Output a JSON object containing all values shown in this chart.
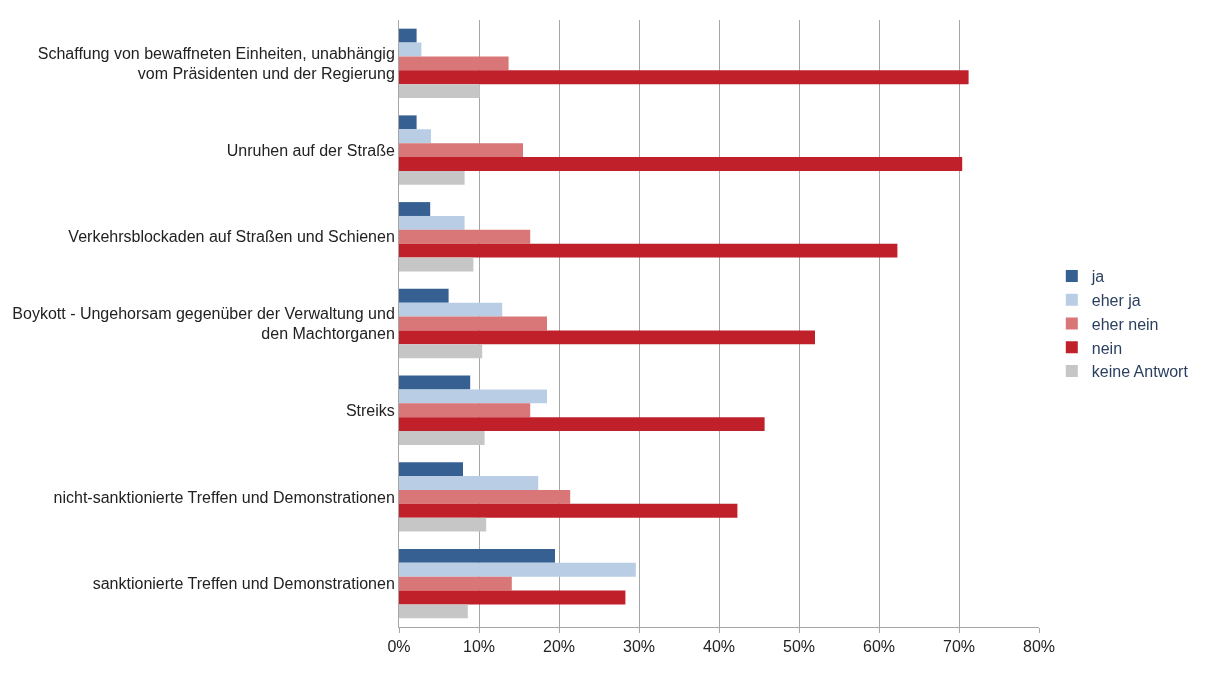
{
  "chart_data": {
    "type": "bar",
    "orientation": "horizontal",
    "categories": [
      "Schaffung von bewaffneten Einheiten, unabhängig vom Präsidenten und der Regierung",
      "Unruhen auf der Straße",
      "Verkehrsblockaden auf Straßen und Schienen",
      "Boykott - Ungehorsam gegenüber der Verwaltung und den Machtorganen",
      "Streiks",
      "nicht-sanktionierte Treffen und Demonstrationen",
      "sanktionierte Treffen und Demonstrationen"
    ],
    "series": [
      {
        "name": "ja",
        "color": "#376092",
        "values": [
          2.2,
          2.2,
          3.9,
          6.2,
          8.9,
          8.0,
          19.5
        ]
      },
      {
        "name": "eher ja",
        "color": "#b9cde5",
        "values": [
          2.8,
          4.0,
          8.2,
          12.9,
          18.5,
          17.4,
          29.6
        ]
      },
      {
        "name": "eher nein",
        "color": "#d97677",
        "values": [
          13.7,
          15.5,
          16.4,
          18.5,
          16.4,
          21.4,
          14.1
        ]
      },
      {
        "name": "nein",
        "color": "#c0202a",
        "values": [
          71.2,
          70.4,
          62.3,
          52.0,
          45.7,
          42.3,
          28.3
        ]
      },
      {
        "name": "keine Antwort",
        "color": "#c6c6c6",
        "values": [
          10.1,
          8.2,
          9.3,
          10.4,
          10.7,
          10.9,
          8.6
        ]
      }
    ],
    "xlim": [
      0,
      80
    ],
    "xticks": [
      {
        "value": 0,
        "label": "0%"
      },
      {
        "value": 10,
        "label": "10%"
      },
      {
        "value": 20,
        "label": "20%"
      },
      {
        "value": 30,
        "label": "30%"
      },
      {
        "value": 40,
        "label": "40%"
      },
      {
        "value": 50,
        "label": "50%"
      },
      {
        "value": 60,
        "label": "60%"
      },
      {
        "value": 70,
        "label": "70%"
      },
      {
        "value": 80,
        "label": "80%"
      }
    ],
    "grid": "x",
    "legend": "right"
  }
}
